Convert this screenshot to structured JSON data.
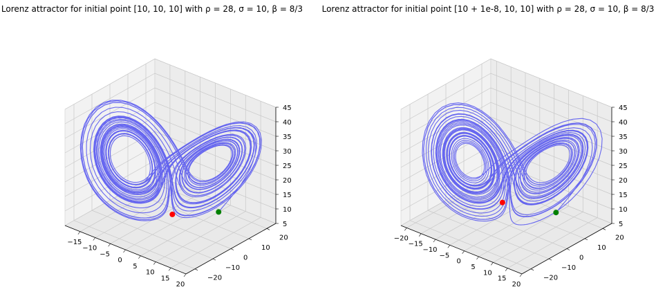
{
  "chart_data": [
    {
      "type": "line",
      "subtype": "3d-line",
      "title": "Lorenz attractor for initial point [10, 10, 10] with ρ = 28, σ = 10, β = 8/3",
      "params": {
        "rho": 28,
        "sigma": 10,
        "beta": 2.6667
      },
      "initial_point": [
        10,
        10,
        10
      ],
      "xlim": [
        -20,
        20
      ],
      "ylim": [
        -25,
        25
      ],
      "zlim": [
        5,
        45
      ],
      "x_ticks": [
        "−15",
        "−10",
        "−5",
        "0",
        "5",
        "10",
        "15",
        "20"
      ],
      "y_ticks": [
        "−20",
        "−10",
        "0",
        "10",
        "20"
      ],
      "z_ticks": [
        "5",
        "10",
        "15",
        "20",
        "25",
        "30",
        "35",
        "40",
        "45"
      ],
      "grid": true,
      "line_color": "#4f4ff0",
      "markers": [
        {
          "label": "start",
          "color": "#008000",
          "point": [
            10,
            10,
            10
          ]
        },
        {
          "label": "end",
          "color": "#ff0000",
          "point": [
            1.3,
            -1.1,
            9.4
          ]
        }
      ]
    },
    {
      "type": "line",
      "subtype": "3d-line",
      "title": "Lorenz attractor for initial point [10 + 1e-8, 10, 10] with ρ = 28, σ = 10, β = 8/3",
      "params": {
        "rho": 28,
        "sigma": 10,
        "beta": 2.6667
      },
      "initial_point": [
        10.00000001,
        10,
        10
      ],
      "xlim": [
        -22,
        20
      ],
      "ylim": [
        -25,
        25
      ],
      "zlim": [
        5,
        45
      ],
      "x_ticks": [
        "−20",
        "−15",
        "−10",
        "−5",
        "0",
        "5",
        "10",
        "15",
        "20"
      ],
      "y_ticks": [
        "−20",
        "−10",
        "0",
        "10",
        "20"
      ],
      "z_ticks": [
        "5",
        "10",
        "15",
        "20",
        "25",
        "30",
        "35",
        "40",
        "45"
      ],
      "grid": true,
      "line_color": "#4f4ff0",
      "markers": [
        {
          "label": "start",
          "color": "#008000",
          "point": [
            10,
            10,
            10
          ]
        },
        {
          "label": "end",
          "color": "#ff0000",
          "point": [
            -0.6,
            -2.8,
            13.7
          ]
        }
      ]
    }
  ]
}
